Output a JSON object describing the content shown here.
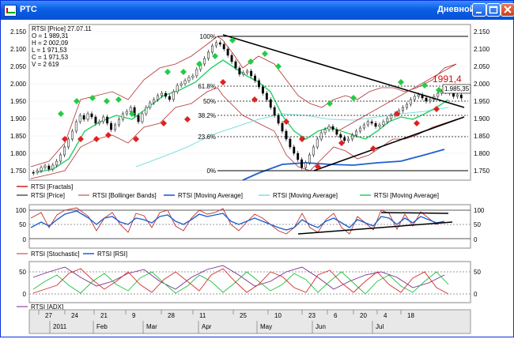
{
  "window": {
    "title": "РТС",
    "period": "Дневной"
  },
  "main_panel": {
    "info": [
      "RTSI [Price] 27.07.11",
      "O = 1 989,31",
      "H = 2 002,09",
      "L = 1 971,53",
      "C = 1 971,53",
      "V = 2 619"
    ],
    "fib_labels": [
      "100%",
      "61.8%",
      "50%",
      "38.2%",
      "23.6%",
      "0%"
    ],
    "y_ticks": [
      "2.150",
      "2.100",
      "2.050",
      "2.000",
      "1.950",
      "1.900",
      "1.850",
      "1.800",
      "1.750"
    ],
    "last_label": "1991,4",
    "price_label": "1.985,35",
    "legend": [
      "RTSI [Fractals]",
      "RTSI [Price]",
      "RTSI [Bollinger Bands]",
      "RTSI [Moving Average]",
      "RTSI [Moving Average]",
      "RTSI [Moving Average]"
    ]
  },
  "osc_panel": {
    "y_ticks": [
      "100",
      "50",
      "0"
    ],
    "legend": [
      "RTSI [Stochastic]",
      "RTSI [RSI]"
    ]
  },
  "adx_panel": {
    "y_ticks": [
      "50",
      "0"
    ],
    "legend": [
      "RTSI [ADX]"
    ]
  },
  "x_axis": {
    "days": [
      "27",
      "24",
      "21",
      "9",
      "28",
      "11",
      "25",
      "10",
      "23",
      "6",
      "20",
      "4",
      "18"
    ],
    "months": [
      "2011",
      "Feb",
      "Mar",
      "Apr",
      "May",
      "Jun",
      "Jul"
    ]
  },
  "colors": {
    "titlebar": "#0a5fe3",
    "bollinger": "#b03030",
    "ma_blue": "#1f5fd0",
    "ma_cyan": "#7ee0e0",
    "ma_green": "#22d066",
    "fractal_up": "#22cc44",
    "fractal_down": "#e02020",
    "rsi": "#1f5fd0",
    "stochastic": "#c03030",
    "last_label": "#d01010"
  },
  "icons": [
    "window-app-icon",
    "minimize-icon",
    "maximize-icon",
    "close-icon"
  ]
}
